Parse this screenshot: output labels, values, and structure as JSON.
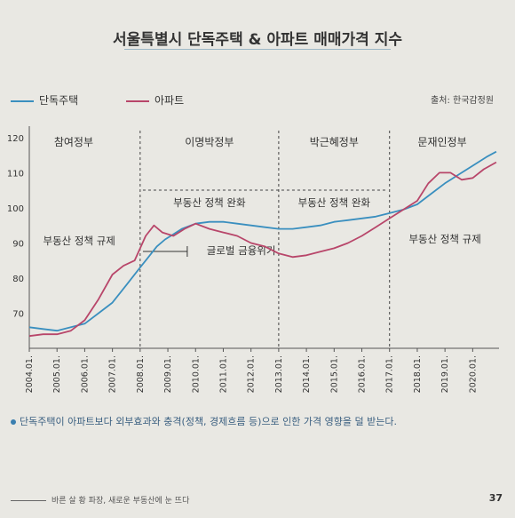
{
  "header": {
    "title": "서울특별시 단독주택 & 아파트 매매가격 지수",
    "source": "출처: 한국감정원"
  },
  "legend": {
    "detached": "단독주택",
    "apartment": "아파트"
  },
  "colors": {
    "detached": "#3a8fbf",
    "apartment": "#b8466a"
  },
  "chart_data": {
    "type": "line",
    "title": "서울특별시 단독주택 & 아파트 매매가격 지수",
    "xlabel": "",
    "ylabel": "",
    "ylim": [
      60,
      122
    ],
    "y_ticks": [
      70,
      80,
      90,
      100,
      110,
      120
    ],
    "x_ticks": [
      "2004.01.",
      "2005.01.",
      "2006.01.",
      "2007.01.",
      "2008.01.",
      "2009.01.",
      "2010.01.",
      "2011.01.",
      "2012.01.",
      "2013.01.",
      "2014.01.",
      "2015.01.",
      "2016.01.",
      "2017.01.",
      "2018.01.",
      "2019.01.",
      "2020.01."
    ],
    "grid": false,
    "legend_position": "top-left",
    "series": [
      {
        "name": "단독주택",
        "x": [
          2004.0,
          2004.5,
          2005.0,
          2005.5,
          2006.0,
          2006.5,
          2007.0,
          2007.5,
          2008.0,
          2008.3,
          2008.6,
          2008.9,
          2009.2,
          2009.5,
          2010.0,
          2010.5,
          2011.0,
          2011.5,
          2012.0,
          2012.5,
          2013.0,
          2013.5,
          2014.0,
          2014.5,
          2015.0,
          2015.5,
          2016.0,
          2016.5,
          2017.0,
          2017.5,
          2018.0,
          2018.5,
          2019.0,
          2019.5,
          2020.0,
          2020.5,
          2020.85
        ],
        "y": [
          66,
          65.5,
          65,
          66,
          67,
          70,
          73,
          78,
          83,
          86,
          89,
          91,
          92.5,
          94,
          95.5,
          96,
          96,
          95.5,
          95,
          94.5,
          94,
          94,
          94.5,
          95,
          96,
          96.5,
          97,
          97.5,
          98.5,
          99.5,
          101,
          104,
          107,
          109.5,
          112,
          114.5,
          116
        ]
      },
      {
        "name": "아파트",
        "x": [
          2004.0,
          2004.5,
          2005.0,
          2005.5,
          2006.0,
          2006.5,
          2007.0,
          2007.4,
          2007.8,
          2008.2,
          2008.5,
          2008.8,
          2009.2,
          2009.6,
          2010.0,
          2010.5,
          2011.0,
          2011.5,
          2012.0,
          2012.5,
          2013.0,
          2013.5,
          2014.0,
          2014.5,
          2015.0,
          2015.5,
          2016.0,
          2016.5,
          2017.0,
          2017.5,
          2018.0,
          2018.4,
          2018.8,
          2019.2,
          2019.6,
          2020.0,
          2020.4,
          2020.85
        ],
        "y": [
          63.5,
          64,
          64,
          65,
          68,
          74,
          81,
          83.5,
          85,
          92,
          95,
          93,
          92,
          94,
          95.5,
          94,
          93,
          92,
          90,
          89,
          87,
          86,
          86.5,
          87.5,
          88.5,
          90,
          92,
          94.5,
          97,
          99.5,
          102,
          107,
          110,
          110,
          108,
          108.5,
          111,
          113
        ]
      }
    ],
    "annotations": {
      "period_labels": [
        "참여정부",
        "이명박정부",
        "박근혜정부",
        "문재인정부"
      ],
      "policy_tighten_1": "부동산 정책 규제",
      "policy_ease": "부동산 정책 완화",
      "policy_ease_2": "부동산 정책 완화",
      "policy_tighten_2": "부동산 정책 규제",
      "crisis": "글로벌 금융위기"
    }
  },
  "footnote": "단독주택이 아파트보다 외부효과와 충격(정책, 경제흐름 등)으로 인한 가격 영향을 덜 받는다.",
  "footer": {
    "book_title": "바른 살 황 파장, 새로운 부동산에 눈 뜨다",
    "page_number": "37"
  }
}
